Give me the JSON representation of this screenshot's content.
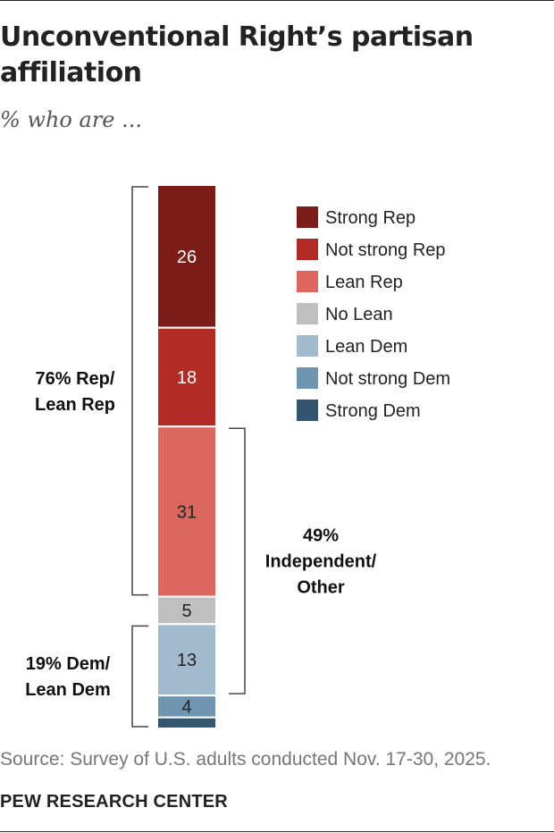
{
  "header": {
    "title": "Unconventional Right’s partisan affiliation",
    "subtitle": "% who are ..."
  },
  "chart_data": {
    "type": "bar",
    "stacked": true,
    "orientation": "vertical",
    "title": "Unconventional Right’s partisan affiliation",
    "subtitle": "% who are ...",
    "categories": [
      ""
    ],
    "series": [
      {
        "name": "Strong Rep",
        "values": [
          26
        ],
        "color": "#7b1c19",
        "label": "26"
      },
      {
        "name": "Not strong Rep",
        "values": [
          18
        ],
        "color": "#b22b24",
        "label": "18"
      },
      {
        "name": "Lean Rep",
        "values": [
          31
        ],
        "color": "#dc675f",
        "label": "31"
      },
      {
        "name": "No Lean",
        "values": [
          5
        ],
        "color": "#bfbfbf",
        "label": "5"
      },
      {
        "name": "Lean Dem",
        "values": [
          13
        ],
        "color": "#a2bacd",
        "label": "13"
      },
      {
        "name": "Not strong Dem",
        "values": [
          4
        ],
        "color": "#6f95b1",
        "label": "4"
      },
      {
        "name": "Strong Dem",
        "values": [
          2
        ],
        "color": "#345570",
        "label": ""
      }
    ],
    "brackets": [
      {
        "lines": [
          "76% Rep/",
          "Lean Rep"
        ],
        "side": "left",
        "from": "Strong Rep",
        "to": "Lean Rep"
      },
      {
        "lines": [
          "49%",
          "Independent/",
          "Other"
        ],
        "side": "right",
        "from": "Lean Rep",
        "to": "Lean Dem"
      },
      {
        "lines": [
          "19% Dem/",
          "Lean Dem"
        ],
        "side": "left",
        "from": "Lean Dem",
        "to": "Strong Dem"
      }
    ],
    "legend": "right"
  },
  "footer": {
    "source": "Source: Survey of U.S. adults conducted Nov. 17-30, 2025.",
    "brand": "PEW RESEARCH CENTER"
  }
}
